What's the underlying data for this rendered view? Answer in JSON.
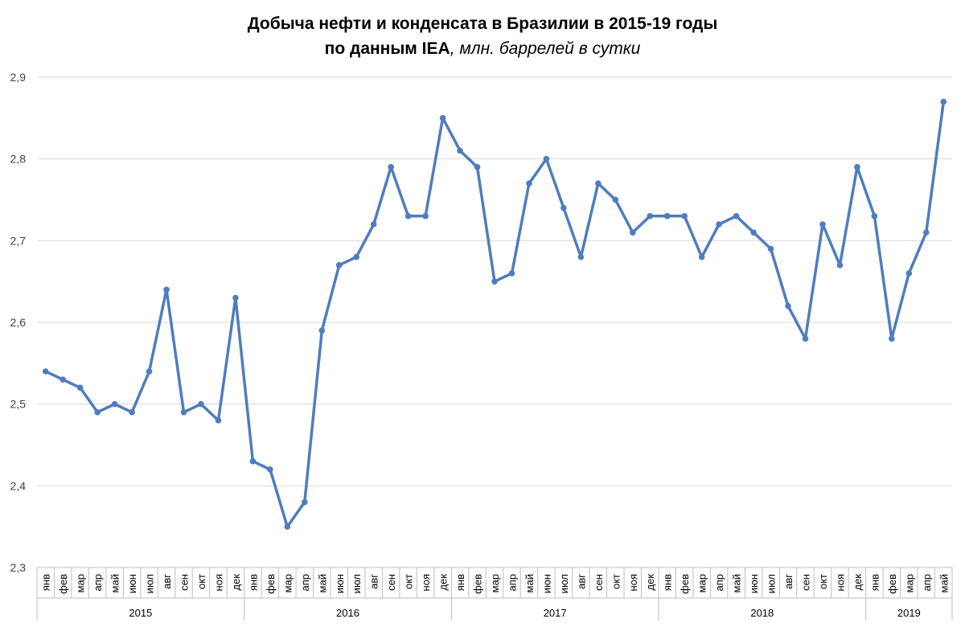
{
  "chart_data": {
    "type": "line",
    "title_main": "Добыча нефти и конденсата в Бразилии в 2015-19 годы",
    "title_source": "по данным IEA",
    "title_unit": ", млн. баррелей в сутки",
    "xlabel": "",
    "ylabel": "",
    "ylim": [
      2.3,
      2.9
    ],
    "yticks": [
      "2,3",
      "2,4",
      "2,5",
      "2,6",
      "2,7",
      "2,8",
      "2,9"
    ],
    "grid": true,
    "legend": "none",
    "line_color": "#4f7dbd",
    "grid_color": "#d9d9d9",
    "axis_color": "#bfbfbf",
    "groups": [
      {
        "year": "2015",
        "months": [
          "янв",
          "фев",
          "мар",
          "апр",
          "май",
          "июн",
          "июл",
          "авг",
          "сен",
          "окт",
          "ноя",
          "дек"
        ]
      },
      {
        "year": "2016",
        "months": [
          "янв",
          "фев",
          "мар",
          "апр",
          "май",
          "июн",
          "июл",
          "авг",
          "сен",
          "окт",
          "ноя",
          "дек"
        ]
      },
      {
        "year": "2017",
        "months": [
          "янв",
          "фев",
          "мар",
          "апр",
          "май",
          "июн",
          "июл",
          "авг",
          "сен",
          "окт",
          "ноя",
          "дек"
        ]
      },
      {
        "year": "2018",
        "months": [
          "янв",
          "фев",
          "мар",
          "апр",
          "май",
          "июн",
          "июл",
          "авг",
          "сен",
          "окт",
          "ноя",
          "дек"
        ]
      },
      {
        "year": "2019",
        "months": [
          "янв",
          "фев",
          "мар",
          "апр",
          "май"
        ]
      }
    ],
    "values": [
      2.54,
      2.53,
      2.52,
      2.49,
      2.5,
      2.49,
      2.54,
      2.64,
      2.49,
      2.5,
      2.48,
      2.63,
      2.43,
      2.42,
      2.35,
      2.38,
      2.59,
      2.67,
      2.68,
      2.72,
      2.79,
      2.73,
      2.73,
      2.85,
      2.81,
      2.79,
      2.65,
      2.66,
      2.77,
      2.8,
      2.74,
      2.68,
      2.77,
      2.75,
      2.71,
      2.73,
      2.73,
      2.73,
      2.68,
      2.72,
      2.73,
      2.71,
      2.69,
      2.62,
      2.58,
      2.72,
      2.67,
      2.79,
      2.73,
      2.58,
      2.66,
      2.71,
      2.87
    ]
  }
}
